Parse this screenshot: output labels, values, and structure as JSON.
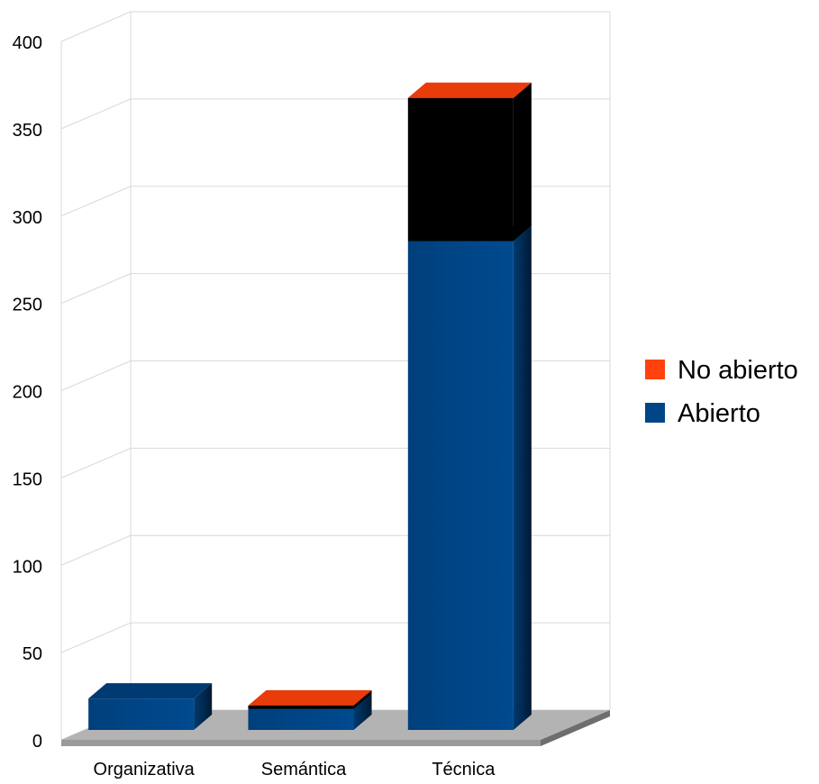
{
  "chart_data": {
    "type": "bar",
    "stacked": true,
    "three_d": true,
    "categories": [
      "Organizativa",
      "Semántica",
      "Técnica"
    ],
    "series": [
      {
        "name": "Abierto",
        "values": [
          18,
          12,
          280
        ],
        "color": "#004586"
      },
      {
        "name": "No abierto",
        "values": [
          0,
          2,
          82
        ],
        "color": "#ff420e"
      }
    ],
    "y_ticks": [
      "0",
      "50",
      "100",
      "150",
      "200",
      "250",
      "300",
      "350",
      "400"
    ],
    "ylim": [
      0,
      400
    ],
    "grid": true,
    "legend_position": "right",
    "floor_color": "#b3b3b3"
  }
}
